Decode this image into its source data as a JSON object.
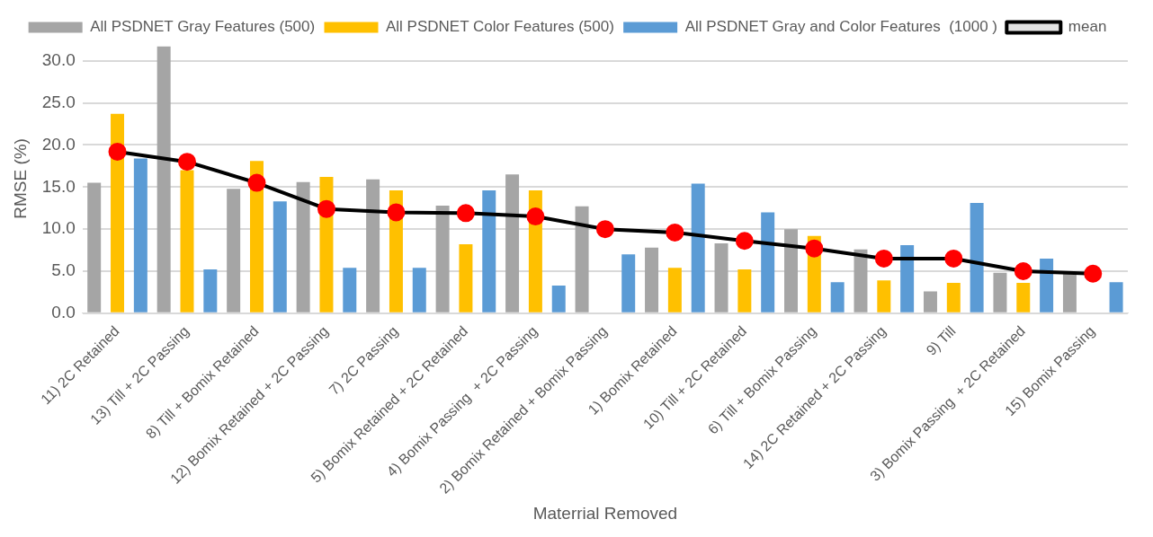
{
  "chart_data": {
    "type": "bar",
    "xlabel": "Materrial Removed",
    "ylabel": "RMSE (%)",
    "categories": [
      "11) 2C Retained",
      "13) Till + 2C Passing",
      "8) Till + Bomix Retained",
      "12) Bomix Retained + 2C Passing",
      "7) 2C Passing",
      "5) Bomix Retained + 2C Retained",
      "4) Bomix Passing  + 2C Passing",
      "2) Bomix Retained + Bomix Passing",
      "1) Bomix Retained",
      "10) Till + 2C Retained",
      "6) Till + Bomix Passing",
      "14) 2C Retained + 2C Passing",
      "9) Till",
      "3) Bomix Passing  + 2C Retained",
      "15) Bomix Passing"
    ],
    "series": [
      {
        "name": "All PSDNET Gray Features (500)",
        "color": "#a5a5a5",
        "values": [
          15.5,
          31.7,
          14.8,
          15.6,
          15.9,
          12.8,
          16.5,
          12.7,
          7.8,
          8.3,
          10.0,
          7.6,
          2.6,
          4.8,
          4.9
        ]
      },
      {
        "name": "All PSDNET Color Features (500)",
        "color": "#ffc000",
        "values": [
          23.7,
          17.0,
          18.1,
          16.2,
          14.6,
          8.2,
          14.6,
          null,
          5.4,
          5.2,
          9.2,
          3.9,
          3.6,
          3.6,
          null
        ]
      },
      {
        "name": "All PSDNET Gray and Color Features  (1000 )",
        "color": "#5b9bd5",
        "values": [
          18.4,
          5.2,
          13.3,
          5.4,
          5.4,
          14.6,
          3.3,
          7.0,
          15.4,
          12.0,
          3.7,
          8.1,
          13.1,
          6.5,
          3.7
        ]
      },
      {
        "name": "mean",
        "type": "line",
        "color": "#000000",
        "marker": "circle",
        "values": [
          19.2,
          18.0,
          15.5,
          12.4,
          12.0,
          11.9,
          11.5,
          10.0,
          9.6,
          8.6,
          7.7,
          6.5,
          6.5,
          5.0,
          4.7
        ]
      }
    ],
    "ylim": [
      0,
      32
    ],
    "yticks": [
      {
        "value": 0,
        "label": "0.0"
      },
      {
        "value": 5,
        "label": "5.0"
      },
      {
        "value": 10,
        "label": "10.0"
      },
      {
        "value": 15,
        "label": "15.0"
      },
      {
        "value": 20,
        "label": "20.0"
      },
      {
        "value": 25,
        "label": "25.0"
      },
      {
        "value": 30,
        "label": "30.0"
      }
    ],
    "grid": "y",
    "legend": "top"
  }
}
